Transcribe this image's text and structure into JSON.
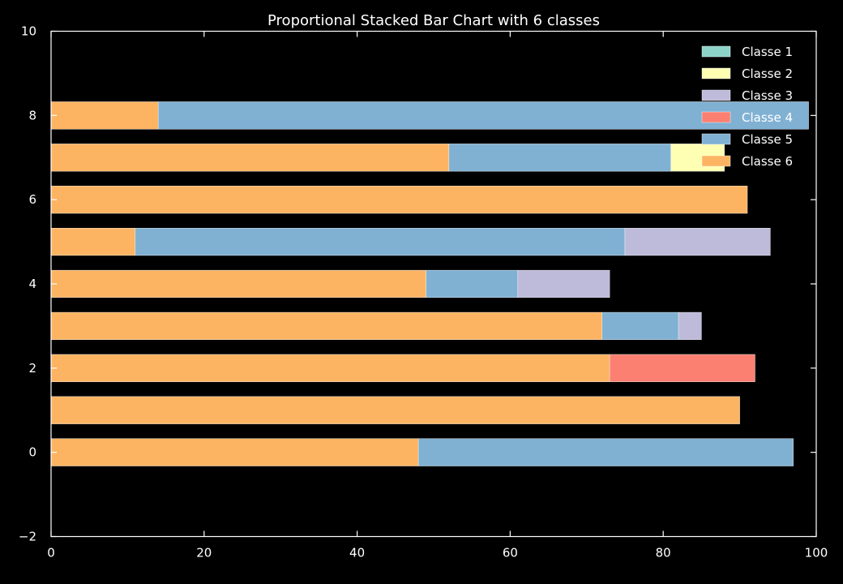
{
  "chart_data": {
    "type": "bar",
    "orientation": "horizontal",
    "stacked": true,
    "title": "Proportional Stacked Bar Chart with 6 classes",
    "xlabel": "",
    "ylabel": "",
    "xlim": [
      0,
      100
    ],
    "ylim": [
      -2,
      10
    ],
    "x_ticks": [
      0,
      20,
      40,
      60,
      80,
      100
    ],
    "x_tick_labels": [
      "0",
      "20",
      "40",
      "60",
      "80",
      "100"
    ],
    "y_ticks": [
      -2,
      0,
      2,
      4,
      6,
      8,
      10
    ],
    "y_tick_labels": [
      "−2",
      "0",
      "2",
      "4",
      "6",
      "8",
      "10"
    ],
    "grid": false,
    "legend_position": "top-right",
    "background": "#000000",
    "categories": [
      0,
      1,
      2,
      3,
      4,
      5,
      6,
      7,
      8
    ],
    "series": [
      {
        "name": "Classe 6",
        "color": "#fdb462",
        "values": [
          48,
          90,
          73,
          72,
          49,
          11,
          91,
          52,
          14
        ]
      },
      {
        "name": "Classe 5",
        "color": "#80b1d3",
        "values": [
          49,
          0,
          0,
          10,
          12,
          64,
          0,
          29,
          85
        ]
      },
      {
        "name": "Classe 3",
        "color": "#bebada",
        "values": [
          0,
          0,
          0,
          3,
          12,
          19,
          0,
          0,
          0
        ]
      },
      {
        "name": "Classe 4",
        "color": "#fb8072",
        "values": [
          0,
          0,
          19,
          0,
          0,
          0,
          0,
          0,
          0
        ]
      },
      {
        "name": "Classe 2",
        "color": "#ffffb3",
        "values": [
          0,
          0,
          0,
          0,
          0,
          0,
          0,
          7,
          0
        ]
      },
      {
        "name": "Classe 1",
        "color": "#8dd3c7",
        "values": [
          0,
          0,
          0,
          0,
          0,
          0,
          0,
          0,
          0
        ]
      }
    ],
    "legend": [
      {
        "label": "Classe 1",
        "color": "#8dd3c7"
      },
      {
        "label": "Classe 2",
        "color": "#ffffb3"
      },
      {
        "label": "Classe 3",
        "color": "#bebada"
      },
      {
        "label": "Classe 4",
        "color": "#fb8072"
      },
      {
        "label": "Classe 5",
        "color": "#80b1d3"
      },
      {
        "label": "Classe 6",
        "color": "#fdb462"
      }
    ]
  }
}
